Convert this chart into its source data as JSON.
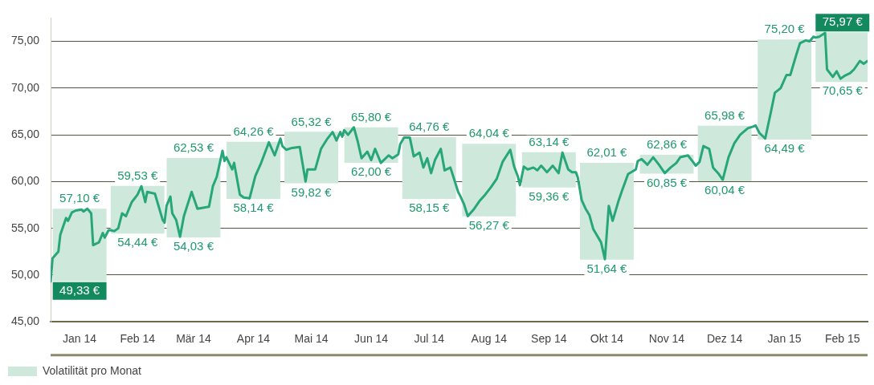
{
  "chart_data": {
    "type": "bar",
    "x": [
      "2014-01-16",
      "2014-02-15",
      "2014-03-16",
      "2014-04-16",
      "2014-05-16",
      "2014-06-16",
      "2014-07-16",
      "2014-08-16",
      "2014-09-16",
      "2014-10-16",
      "2014-11-16",
      "2014-12-16",
      "2015-01-16",
      "2015-02-15"
    ],
    "xlim": [
      "2014-01-01",
      "2015-02-28"
    ],
    "xticks": [
      {
        "value": "2014-01-16",
        "label": "Jan 14"
      },
      {
        "value": "2014-02-15",
        "label": "Feb 14"
      },
      {
        "value": "2014-03-16",
        "label": "Mär 14"
      },
      {
        "value": "2014-04-16",
        "label": "Apr 14"
      },
      {
        "value": "2014-05-16",
        "label": "Mai 14"
      },
      {
        "value": "2014-06-16",
        "label": "Jun 14"
      },
      {
        "value": "2014-07-16",
        "label": "Jul 14"
      },
      {
        "value": "2014-08-16",
        "label": "Aug 14"
      },
      {
        "value": "2014-09-16",
        "label": "Sep 14"
      },
      {
        "value": "2014-10-16",
        "label": "Okt 14"
      },
      {
        "value": "2014-11-16",
        "label": "Nov 14"
      },
      {
        "value": "2014-12-16",
        "label": "Dez 14"
      },
      {
        "value": "2015-01-16",
        "label": "Jan 15"
      },
      {
        "value": "2015-02-15",
        "label": "Feb 15"
      }
    ],
    "series": [
      {
        "name": "Volatilität pro Monat",
        "color": "#cfe8dc",
        "base": [
          49.33,
          54.44,
          54.03,
          58.14,
          59.82,
          62.0,
          58.15,
          56.27,
          59.36,
          51.64,
          60.85,
          60.04,
          64.49,
          70.65
        ],
        "values": [
          7.77,
          5.09,
          8.5,
          6.12,
          5.5,
          3.8,
          6.61,
          7.77,
          3.78,
          10.37,
          2.01,
          5.94,
          10.71,
          5.32
        ]
      },
      {
        "type": "line",
        "color": "#27a67a",
        "marker": "none",
        "line_style": "solid",
        "x": [
          "2014-01-01",
          "2014-01-02",
          "2014-01-05",
          "2014-01-06",
          "2014-01-08",
          "2014-01-09",
          "2014-01-10",
          "2014-01-12",
          "2014-01-14",
          "2014-01-17",
          "2014-01-18",
          "2014-01-20",
          "2014-01-22",
          "2014-01-23",
          "2014-01-26",
          "2014-01-28",
          "2014-01-29",
          "2014-01-31",
          "2014-02-01",
          "2014-02-03",
          "2014-02-05",
          "2014-02-07",
          "2014-02-09",
          "2014-02-12",
          "2014-02-15",
          "2014-02-17",
          "2014-02-19",
          "2014-02-20",
          "2014-02-24",
          "2014-02-26",
          "2014-02-28",
          "2014-03-01",
          "2014-03-02",
          "2014-03-04",
          "2014-03-05",
          "2014-03-07",
          "2014-03-09",
          "2014-03-11",
          "2014-03-15",
          "2014-03-18",
          "2014-03-21",
          "2014-03-24",
          "2014-03-26",
          "2014-03-28",
          "2014-03-31",
          "2014-04-01",
          "2014-04-02",
          "2014-04-05",
          "2014-04-06",
          "2014-04-09",
          "2014-04-11",
          "2014-04-14",
          "2014-04-17",
          "2014-04-20",
          "2014-04-24",
          "2014-04-27",
          "2014-04-30",
          "2014-05-01",
          "2014-05-03",
          "2014-05-06",
          "2014-05-10",
          "2014-05-13",
          "2014-05-14",
          "2014-05-18",
          "2014-05-21",
          "2014-05-24",
          "2014-05-27",
          "2014-05-29",
          "2014-05-31",
          "2014-06-01",
          "2014-06-02",
          "2014-06-04",
          "2014-06-07",
          "2014-06-09",
          "2014-06-11",
          "2014-06-14",
          "2014-06-16",
          "2014-06-18",
          "2014-06-21",
          "2014-06-25",
          "2014-06-27",
          "2014-06-30",
          "2014-07-01",
          "2014-07-03",
          "2014-07-06",
          "2014-07-08",
          "2014-07-11",
          "2014-07-13",
          "2014-07-15",
          "2014-07-17",
          "2014-07-19",
          "2014-07-22",
          "2014-07-24",
          "2014-07-27",
          "2014-07-29",
          "2014-07-31",
          "2014-08-01",
          "2014-08-03",
          "2014-08-05",
          "2014-08-08",
          "2014-08-11",
          "2014-08-14",
          "2014-08-17",
          "2014-08-20",
          "2014-08-23",
          "2014-08-27",
          "2014-08-29",
          "2014-08-31",
          "2014-09-01",
          "2014-09-03",
          "2014-09-05",
          "2014-09-08",
          "2014-09-10",
          "2014-09-12",
          "2014-09-15",
          "2014-09-18",
          "2014-09-21",
          "2014-09-23",
          "2014-09-26",
          "2014-09-28",
          "2014-09-30",
          "2014-10-01",
          "2014-10-03",
          "2014-10-05",
          "2014-10-07",
          "2014-10-09",
          "2014-10-13",
          "2014-10-15",
          "2014-10-17",
          "2014-10-19",
          "2014-10-22",
          "2014-10-24",
          "2014-10-27",
          "2014-10-31",
          "2014-11-01",
          "2014-11-03",
          "2014-11-06",
          "2014-11-09",
          "2014-11-12",
          "2014-11-15",
          "2014-11-18",
          "2014-11-21",
          "2014-11-23",
          "2014-11-27",
          "2014-11-30",
          "2014-12-01",
          "2014-12-03",
          "2014-12-05",
          "2014-12-08",
          "2014-12-10",
          "2014-12-13",
          "2014-12-15",
          "2014-12-18",
          "2014-12-21",
          "2014-12-24",
          "2014-12-28",
          "2014-12-31",
          "2015-01-01",
          "2015-01-03",
          "2015-01-06",
          "2015-01-09",
          "2015-01-11",
          "2015-01-14",
          "2015-01-17",
          "2015-01-19",
          "2015-01-22",
          "2015-01-24",
          "2015-01-27",
          "2015-01-29",
          "2015-01-31",
          "2015-02-01",
          "2015-02-03",
          "2015-02-06",
          "2015-02-07",
          "2015-02-10",
          "2015-02-12",
          "2015-02-14",
          "2015-02-16",
          "2015-02-19",
          "2015-02-21",
          "2015-02-24",
          "2015-02-26",
          "2015-02-28"
        ],
        "values": [
          49.3,
          51.8,
          52.5,
          54.3,
          55.5,
          56.1,
          55.8,
          56.7,
          56.9,
          57.0,
          56.8,
          57.1,
          56.6,
          53.2,
          53.5,
          54.5,
          54.0,
          54.8,
          54.8,
          54.7,
          55.0,
          56.6,
          56.3,
          57.8,
          58.6,
          59.5,
          57.8,
          58.9,
          58.7,
          57.3,
          55.9,
          55.6,
          57.4,
          58.4,
          56.6,
          55.9,
          54.1,
          56.3,
          58.9,
          57.1,
          57.2,
          57.3,
          59.5,
          60.5,
          63.3,
          62.2,
          62.6,
          61.3,
          62.0,
          58.6,
          58.3,
          58.2,
          60.6,
          62.0,
          64.2,
          62.8,
          64.6,
          63.8,
          63.4,
          63.6,
          63.7,
          60.0,
          61.3,
          61.3,
          63.5,
          64.5,
          65.3,
          64.4,
          65.3,
          64.8,
          65.5,
          65.0,
          65.8,
          64.3,
          62.5,
          63.2,
          62.3,
          63.5,
          62.0,
          62.8,
          62.5,
          62.9,
          64.0,
          64.7,
          64.7,
          62.7,
          63.1,
          61.5,
          62.5,
          60.9,
          62.3,
          63.5,
          61.2,
          61.5,
          60.2,
          58.9,
          58.5,
          57.6,
          56.3,
          57.0,
          57.9,
          58.6,
          59.4,
          60.3,
          62.1,
          63.4,
          61.6,
          60.5,
          59.6,
          61.6,
          61.3,
          61.5,
          61.2,
          61.7,
          61.0,
          61.7,
          60.9,
          63.1,
          61.3,
          61.0,
          61.0,
          60.4,
          58.0,
          57.1,
          56.4,
          54.9,
          53.5,
          51.7,
          57.4,
          55.8,
          57.9,
          59.1,
          60.8,
          61.3,
          62.2,
          62.4,
          61.8,
          62.6,
          61.8,
          60.9,
          61.5,
          62.0,
          62.6,
          62.8,
          62.0,
          61.7,
          62.1,
          63.8,
          63.5,
          61.5,
          60.8,
          60.2,
          62.6,
          64.1,
          65.0,
          65.7,
          65.9,
          66.0,
          65.2,
          64.6,
          67.5,
          69.5,
          70.0,
          71.4,
          71.4,
          73.5,
          74.8,
          75.1,
          75.0,
          75.5,
          75.4,
          75.5,
          75.9,
          72.0,
          71.2,
          71.8,
          71.0,
          71.3,
          71.6,
          72.0,
          72.9,
          72.6,
          72.9
        ]
      }
    ],
    "ylim": [
      45,
      77.5
    ],
    "yticks": [
      {
        "value": 45,
        "label": "45,00"
      },
      {
        "value": 50,
        "label": "50,00"
      },
      {
        "value": 55,
        "label": "55,00"
      },
      {
        "value": 60,
        "label": "60,00"
      },
      {
        "value": 65,
        "label": "65,00"
      },
      {
        "value": 70,
        "label": "70,00"
      },
      {
        "value": 75,
        "label": "75,00"
      }
    ],
    "grid": "y",
    "legend": "bottom left",
    "annotations": [
      {
        "text": "57,10 €",
        "x": "2014-01-16",
        "y": 57.1
      },
      {
        "text": "49,33 €",
        "x": "2014-01-16",
        "y": 49.33
      },
      {
        "text": "59,53 €",
        "x": "2014-02-15",
        "y": 59.53
      },
      {
        "text": "54,44 €",
        "x": "2014-02-15",
        "y": 54.44
      },
      {
        "text": "62,53 €",
        "x": "2014-03-16",
        "y": 62.53
      },
      {
        "text": "54,03 €",
        "x": "2014-03-16",
        "y": 54.03
      },
      {
        "text": "64,26 €",
        "x": "2014-04-16",
        "y": 64.26
      },
      {
        "text": "58,14 €",
        "x": "2014-04-16",
        "y": 58.14
      },
      {
        "text": "65,32 €",
        "x": "2014-05-16",
        "y": 65.32
      },
      {
        "text": "59,82 €",
        "x": "2014-05-16",
        "y": 59.82
      },
      {
        "text": "65,80 €",
        "x": "2014-06-16",
        "y": 65.8
      },
      {
        "text": "62,00 €",
        "x": "2014-06-16",
        "y": 62.0
      },
      {
        "text": "64,76 €",
        "x": "2014-07-16",
        "y": 64.76
      },
      {
        "text": "58,15 €",
        "x": "2014-07-16",
        "y": 58.15
      },
      {
        "text": "64,04 €",
        "x": "2014-08-16",
        "y": 64.04
      },
      {
        "text": "56,27 €",
        "x": "2014-08-16",
        "y": 56.27
      },
      {
        "text": "63,14 €",
        "x": "2014-09-16",
        "y": 63.14
      },
      {
        "text": "59,36 €",
        "x": "2014-09-16",
        "y": 59.36
      },
      {
        "text": "62,01 €",
        "x": "2014-10-16",
        "y": 62.01
      },
      {
        "text": "51,64 €",
        "x": "2014-10-16",
        "y": 51.64
      },
      {
        "text": "62,86 €",
        "x": "2014-11-16",
        "y": 62.86
      },
      {
        "text": "60,85 €",
        "x": "2014-11-16",
        "y": 60.85
      },
      {
        "text": "65,98 €",
        "x": "2014-12-16",
        "y": 65.98
      },
      {
        "text": "60,04 €",
        "x": "2014-12-16",
        "y": 60.04
      },
      {
        "text": "75,20 €",
        "x": "2015-01-16",
        "y": 75.2
      },
      {
        "text": "64,49 €",
        "x": "2015-01-16",
        "y": 64.49
      },
      {
        "text": "75,97 €",
        "x": "2015-02-15",
        "y": 75.97
      },
      {
        "text": "70,65 €",
        "x": "2015-02-15",
        "y": 70.65
      }
    ]
  }
}
